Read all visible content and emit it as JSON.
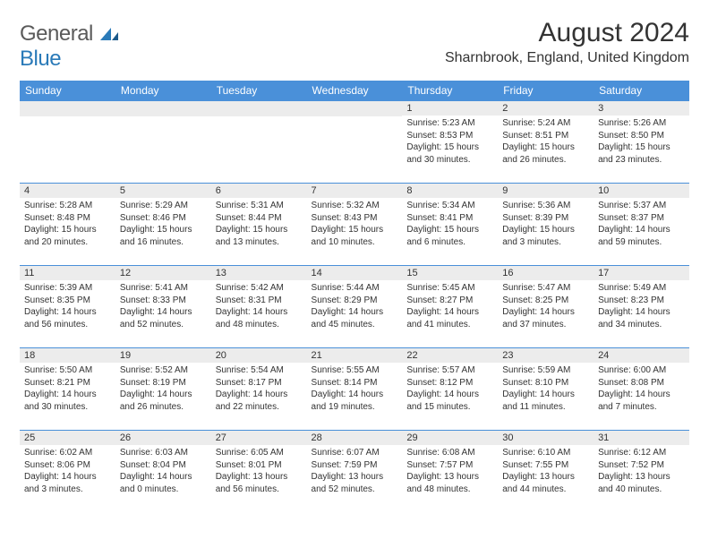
{
  "logo": {
    "general": "General",
    "blue": "Blue"
  },
  "title": "August 2024",
  "location": "Sharnbrook, England, United Kingdom",
  "header_bg": "#4a90d9",
  "header_fg": "#ffffff",
  "daynum_bg": "#ececec",
  "text_color": "#333333",
  "divider_color": "#4a90d9",
  "days_of_week": [
    "Sunday",
    "Monday",
    "Tuesday",
    "Wednesday",
    "Thursday",
    "Friday",
    "Saturday"
  ],
  "weeks": [
    [
      {
        "n": "",
        "sr": "",
        "ss": "",
        "dl": ""
      },
      {
        "n": "",
        "sr": "",
        "ss": "",
        "dl": ""
      },
      {
        "n": "",
        "sr": "",
        "ss": "",
        "dl": ""
      },
      {
        "n": "",
        "sr": "",
        "ss": "",
        "dl": ""
      },
      {
        "n": "1",
        "sr": "Sunrise: 5:23 AM",
        "ss": "Sunset: 8:53 PM",
        "dl": "Daylight: 15 hours and 30 minutes."
      },
      {
        "n": "2",
        "sr": "Sunrise: 5:24 AM",
        "ss": "Sunset: 8:51 PM",
        "dl": "Daylight: 15 hours and 26 minutes."
      },
      {
        "n": "3",
        "sr": "Sunrise: 5:26 AM",
        "ss": "Sunset: 8:50 PM",
        "dl": "Daylight: 15 hours and 23 minutes."
      }
    ],
    [
      {
        "n": "4",
        "sr": "Sunrise: 5:28 AM",
        "ss": "Sunset: 8:48 PM",
        "dl": "Daylight: 15 hours and 20 minutes."
      },
      {
        "n": "5",
        "sr": "Sunrise: 5:29 AM",
        "ss": "Sunset: 8:46 PM",
        "dl": "Daylight: 15 hours and 16 minutes."
      },
      {
        "n": "6",
        "sr": "Sunrise: 5:31 AM",
        "ss": "Sunset: 8:44 PM",
        "dl": "Daylight: 15 hours and 13 minutes."
      },
      {
        "n": "7",
        "sr": "Sunrise: 5:32 AM",
        "ss": "Sunset: 8:43 PM",
        "dl": "Daylight: 15 hours and 10 minutes."
      },
      {
        "n": "8",
        "sr": "Sunrise: 5:34 AM",
        "ss": "Sunset: 8:41 PM",
        "dl": "Daylight: 15 hours and 6 minutes."
      },
      {
        "n": "9",
        "sr": "Sunrise: 5:36 AM",
        "ss": "Sunset: 8:39 PM",
        "dl": "Daylight: 15 hours and 3 minutes."
      },
      {
        "n": "10",
        "sr": "Sunrise: 5:37 AM",
        "ss": "Sunset: 8:37 PM",
        "dl": "Daylight: 14 hours and 59 minutes."
      }
    ],
    [
      {
        "n": "11",
        "sr": "Sunrise: 5:39 AM",
        "ss": "Sunset: 8:35 PM",
        "dl": "Daylight: 14 hours and 56 minutes."
      },
      {
        "n": "12",
        "sr": "Sunrise: 5:41 AM",
        "ss": "Sunset: 8:33 PM",
        "dl": "Daylight: 14 hours and 52 minutes."
      },
      {
        "n": "13",
        "sr": "Sunrise: 5:42 AM",
        "ss": "Sunset: 8:31 PM",
        "dl": "Daylight: 14 hours and 48 minutes."
      },
      {
        "n": "14",
        "sr": "Sunrise: 5:44 AM",
        "ss": "Sunset: 8:29 PM",
        "dl": "Daylight: 14 hours and 45 minutes."
      },
      {
        "n": "15",
        "sr": "Sunrise: 5:45 AM",
        "ss": "Sunset: 8:27 PM",
        "dl": "Daylight: 14 hours and 41 minutes."
      },
      {
        "n": "16",
        "sr": "Sunrise: 5:47 AM",
        "ss": "Sunset: 8:25 PM",
        "dl": "Daylight: 14 hours and 37 minutes."
      },
      {
        "n": "17",
        "sr": "Sunrise: 5:49 AM",
        "ss": "Sunset: 8:23 PM",
        "dl": "Daylight: 14 hours and 34 minutes."
      }
    ],
    [
      {
        "n": "18",
        "sr": "Sunrise: 5:50 AM",
        "ss": "Sunset: 8:21 PM",
        "dl": "Daylight: 14 hours and 30 minutes."
      },
      {
        "n": "19",
        "sr": "Sunrise: 5:52 AM",
        "ss": "Sunset: 8:19 PM",
        "dl": "Daylight: 14 hours and 26 minutes."
      },
      {
        "n": "20",
        "sr": "Sunrise: 5:54 AM",
        "ss": "Sunset: 8:17 PM",
        "dl": "Daylight: 14 hours and 22 minutes."
      },
      {
        "n": "21",
        "sr": "Sunrise: 5:55 AM",
        "ss": "Sunset: 8:14 PM",
        "dl": "Daylight: 14 hours and 19 minutes."
      },
      {
        "n": "22",
        "sr": "Sunrise: 5:57 AM",
        "ss": "Sunset: 8:12 PM",
        "dl": "Daylight: 14 hours and 15 minutes."
      },
      {
        "n": "23",
        "sr": "Sunrise: 5:59 AM",
        "ss": "Sunset: 8:10 PM",
        "dl": "Daylight: 14 hours and 11 minutes."
      },
      {
        "n": "24",
        "sr": "Sunrise: 6:00 AM",
        "ss": "Sunset: 8:08 PM",
        "dl": "Daylight: 14 hours and 7 minutes."
      }
    ],
    [
      {
        "n": "25",
        "sr": "Sunrise: 6:02 AM",
        "ss": "Sunset: 8:06 PM",
        "dl": "Daylight: 14 hours and 3 minutes."
      },
      {
        "n": "26",
        "sr": "Sunrise: 6:03 AM",
        "ss": "Sunset: 8:04 PM",
        "dl": "Daylight: 14 hours and 0 minutes."
      },
      {
        "n": "27",
        "sr": "Sunrise: 6:05 AM",
        "ss": "Sunset: 8:01 PM",
        "dl": "Daylight: 13 hours and 56 minutes."
      },
      {
        "n": "28",
        "sr": "Sunrise: 6:07 AM",
        "ss": "Sunset: 7:59 PM",
        "dl": "Daylight: 13 hours and 52 minutes."
      },
      {
        "n": "29",
        "sr": "Sunrise: 6:08 AM",
        "ss": "Sunset: 7:57 PM",
        "dl": "Daylight: 13 hours and 48 minutes."
      },
      {
        "n": "30",
        "sr": "Sunrise: 6:10 AM",
        "ss": "Sunset: 7:55 PM",
        "dl": "Daylight: 13 hours and 44 minutes."
      },
      {
        "n": "31",
        "sr": "Sunrise: 6:12 AM",
        "ss": "Sunset: 7:52 PM",
        "dl": "Daylight: 13 hours and 40 minutes."
      }
    ]
  ]
}
